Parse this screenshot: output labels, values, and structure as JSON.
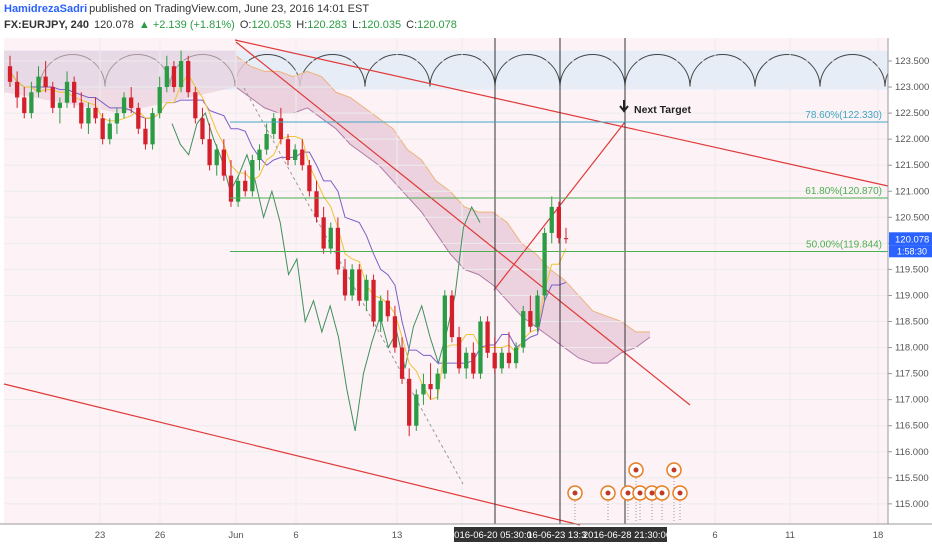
{
  "header": {
    "author": "HamidrezaSadri",
    "published_text": "published on TradingView.com, June 23, 2016 14:01 EST",
    "symbol": "FX:EURJPY, 240",
    "last": "120.078",
    "change": "▲ +2.139 (+1.81%)",
    "open_label": "O:",
    "open": "120.053",
    "high_label": "H:",
    "high": "120.283",
    "low_label": "L:",
    "low": "120.035",
    "close_label": "C:",
    "close": "120.078"
  },
  "colors": {
    "up": "#2a9c43",
    "down": "#d3202b",
    "channel": "#e03a3a",
    "fib": "#4caf50",
    "fib_top": "#3ea7c2",
    "kumo": "#e8cbd9",
    "author": "#2962ff"
  },
  "chart_data": {
    "type": "candlestick",
    "symbol": "FX:EURJPY",
    "interval": "240",
    "ylim": [
      114.7,
      123.8
    ],
    "price_ticks": [
      "123.500",
      "123.000",
      "122.500",
      "122.000",
      "121.500",
      "121.000",
      "120.500",
      "120.000",
      "119.500",
      "119.000",
      "118.500",
      "118.000",
      "117.500",
      "117.000",
      "116.500",
      "116.000",
      "115.500",
      "115.000"
    ],
    "date_ticks": [
      "23",
      "26",
      "Jun",
      "6",
      "13",
      "20",
      "6",
      "11",
      "18"
    ],
    "cursor_dates": [
      "2016-06-20 05:30:00",
      "16-06-23 13:30",
      "2016-06-28 21:30:00"
    ],
    "last_price_label": "120.078",
    "countdown_label": "1:58:30",
    "fib_levels": [
      {
        "label": "78.60%(122.330)",
        "price": 122.33
      },
      {
        "label": "61.80%(120.870)",
        "price": 120.87
      },
      {
        "label": "50.00%(119.844)",
        "price": 119.844
      }
    ],
    "annotation": "Next Target",
    "candles": [
      {
        "o": 123.4,
        "h": 123.6,
        "l": 123.0,
        "c": 123.1
      },
      {
        "o": 123.1,
        "h": 123.3,
        "l": 122.6,
        "c": 122.8
      },
      {
        "o": 122.8,
        "h": 123.0,
        "l": 122.4,
        "c": 122.5
      },
      {
        "o": 122.5,
        "h": 123.1,
        "l": 122.4,
        "c": 122.9
      },
      {
        "o": 122.9,
        "h": 123.4,
        "l": 122.8,
        "c": 123.2
      },
      {
        "o": 123.2,
        "h": 123.5,
        "l": 122.9,
        "c": 123.0
      },
      {
        "o": 123.0,
        "h": 123.1,
        "l": 122.5,
        "c": 122.6
      },
      {
        "o": 122.6,
        "h": 122.8,
        "l": 122.3,
        "c": 122.7
      },
      {
        "o": 122.7,
        "h": 123.3,
        "l": 122.6,
        "c": 123.1
      },
      {
        "o": 123.1,
        "h": 123.2,
        "l": 122.6,
        "c": 122.7
      },
      {
        "o": 122.7,
        "h": 122.9,
        "l": 122.2,
        "c": 122.3
      },
      {
        "o": 122.3,
        "h": 122.7,
        "l": 122.1,
        "c": 122.6
      },
      {
        "o": 122.6,
        "h": 122.8,
        "l": 122.3,
        "c": 122.4
      },
      {
        "o": 122.4,
        "h": 122.5,
        "l": 121.9,
        "c": 122.0
      },
      {
        "o": 122.0,
        "h": 122.4,
        "l": 121.9,
        "c": 122.3
      },
      {
        "o": 122.3,
        "h": 122.6,
        "l": 122.1,
        "c": 122.5
      },
      {
        "o": 122.5,
        "h": 122.9,
        "l": 122.4,
        "c": 122.8
      },
      {
        "o": 122.8,
        "h": 123.0,
        "l": 122.5,
        "c": 122.6
      },
      {
        "o": 122.6,
        "h": 122.7,
        "l": 122.1,
        "c": 122.2
      },
      {
        "o": 122.2,
        "h": 122.4,
        "l": 121.8,
        "c": 121.9
      },
      {
        "o": 121.9,
        "h": 122.6,
        "l": 121.8,
        "c": 122.5
      },
      {
        "o": 122.5,
        "h": 123.2,
        "l": 122.4,
        "c": 123.0
      },
      {
        "o": 123.0,
        "h": 123.6,
        "l": 122.9,
        "c": 123.4
      },
      {
        "o": 123.4,
        "h": 123.5,
        "l": 122.9,
        "c": 123.0
      },
      {
        "o": 123.0,
        "h": 123.7,
        "l": 122.9,
        "c": 123.5
      },
      {
        "o": 123.5,
        "h": 123.6,
        "l": 122.8,
        "c": 122.9
      },
      {
        "o": 122.9,
        "h": 123.0,
        "l": 122.3,
        "c": 122.4
      },
      {
        "o": 122.4,
        "h": 122.6,
        "l": 121.9,
        "c": 122.0
      },
      {
        "o": 122.0,
        "h": 122.3,
        "l": 121.4,
        "c": 121.5
      },
      {
        "o": 121.5,
        "h": 121.9,
        "l": 121.3,
        "c": 121.8
      },
      {
        "o": 121.8,
        "h": 122.0,
        "l": 121.2,
        "c": 121.3
      },
      {
        "o": 121.3,
        "h": 121.6,
        "l": 120.7,
        "c": 120.8
      },
      {
        "o": 120.8,
        "h": 121.3,
        "l": 120.7,
        "c": 121.2
      },
      {
        "o": 121.2,
        "h": 121.4,
        "l": 120.9,
        "c": 121.0
      },
      {
        "o": 121.0,
        "h": 121.7,
        "l": 120.9,
        "c": 121.6
      },
      {
        "o": 121.6,
        "h": 121.9,
        "l": 121.4,
        "c": 121.8
      },
      {
        "o": 121.8,
        "h": 122.3,
        "l": 121.7,
        "c": 122.1
      },
      {
        "o": 122.1,
        "h": 122.5,
        "l": 122.0,
        "c": 122.4
      },
      {
        "o": 122.4,
        "h": 122.6,
        "l": 121.9,
        "c": 122.0
      },
      {
        "o": 122.0,
        "h": 122.1,
        "l": 121.5,
        "c": 121.6
      },
      {
        "o": 121.6,
        "h": 121.9,
        "l": 121.5,
        "c": 121.8
      },
      {
        "o": 121.8,
        "h": 122.0,
        "l": 121.4,
        "c": 121.5
      },
      {
        "o": 121.5,
        "h": 121.6,
        "l": 120.9,
        "c": 121.0
      },
      {
        "o": 121.0,
        "h": 121.2,
        "l": 120.4,
        "c": 120.5
      },
      {
        "o": 120.5,
        "h": 120.7,
        "l": 119.8,
        "c": 119.9
      },
      {
        "o": 119.9,
        "h": 120.4,
        "l": 119.8,
        "c": 120.3
      },
      {
        "o": 120.3,
        "h": 120.5,
        "l": 119.4,
        "c": 119.5
      },
      {
        "o": 119.5,
        "h": 119.7,
        "l": 118.9,
        "c": 119.0
      },
      {
        "o": 119.0,
        "h": 119.6,
        "l": 118.9,
        "c": 119.5
      },
      {
        "o": 119.5,
        "h": 119.6,
        "l": 118.8,
        "c": 118.9
      },
      {
        "o": 118.9,
        "h": 119.4,
        "l": 118.7,
        "c": 119.3
      },
      {
        "o": 119.3,
        "h": 119.4,
        "l": 118.4,
        "c": 118.5
      },
      {
        "o": 118.5,
        "h": 119.0,
        "l": 118.3,
        "c": 118.9
      },
      {
        "o": 118.9,
        "h": 119.1,
        "l": 118.5,
        "c": 118.6
      },
      {
        "o": 118.6,
        "h": 118.8,
        "l": 117.9,
        "c": 118.0
      },
      {
        "o": 118.0,
        "h": 118.2,
        "l": 117.3,
        "c": 117.4
      },
      {
        "o": 117.4,
        "h": 117.6,
        "l": 116.3,
        "c": 116.5
      },
      {
        "o": 116.5,
        "h": 117.2,
        "l": 116.4,
        "c": 117.1
      },
      {
        "o": 117.1,
        "h": 117.5,
        "l": 116.9,
        "c": 117.3
      },
      {
        "o": 117.3,
        "h": 117.7,
        "l": 117.0,
        "c": 117.2
      },
      {
        "o": 117.2,
        "h": 117.6,
        "l": 117.0,
        "c": 117.5
      },
      {
        "o": 117.5,
        "h": 119.1,
        "l": 117.4,
        "c": 119.0
      },
      {
        "o": 119.0,
        "h": 119.1,
        "l": 118.1,
        "c": 118.2
      },
      {
        "o": 118.2,
        "h": 118.4,
        "l": 117.5,
        "c": 117.6
      },
      {
        "o": 117.6,
        "h": 118.0,
        "l": 117.4,
        "c": 117.9
      },
      {
        "o": 117.9,
        "h": 118.1,
        "l": 117.4,
        "c": 117.5
      },
      {
        "o": 117.5,
        "h": 118.6,
        "l": 117.4,
        "c": 118.5
      },
      {
        "o": 118.5,
        "h": 118.6,
        "l": 117.8,
        "c": 117.9
      },
      {
        "o": 117.9,
        "h": 118.2,
        "l": 117.5,
        "c": 117.6
      },
      {
        "o": 117.6,
        "h": 118.0,
        "l": 117.5,
        "c": 117.9
      },
      {
        "o": 117.9,
        "h": 118.3,
        "l": 117.6,
        "c": 117.7
      },
      {
        "o": 117.7,
        "h": 118.1,
        "l": 117.6,
        "c": 118.0
      },
      {
        "o": 118.0,
        "h": 118.8,
        "l": 117.9,
        "c": 118.7
      },
      {
        "o": 118.7,
        "h": 119.0,
        "l": 118.3,
        "c": 118.4
      },
      {
        "o": 118.4,
        "h": 119.1,
        "l": 118.3,
        "c": 119.0
      },
      {
        "o": 119.0,
        "h": 120.3,
        "l": 118.9,
        "c": 120.2
      },
      {
        "o": 120.2,
        "h": 120.9,
        "l": 120.0,
        "c": 120.7
      },
      {
        "o": 120.7,
        "h": 120.8,
        "l": 120.0,
        "c": 120.1
      },
      {
        "o": 120.1,
        "h": 120.3,
        "l": 120.0,
        "c": 120.08
      }
    ]
  }
}
